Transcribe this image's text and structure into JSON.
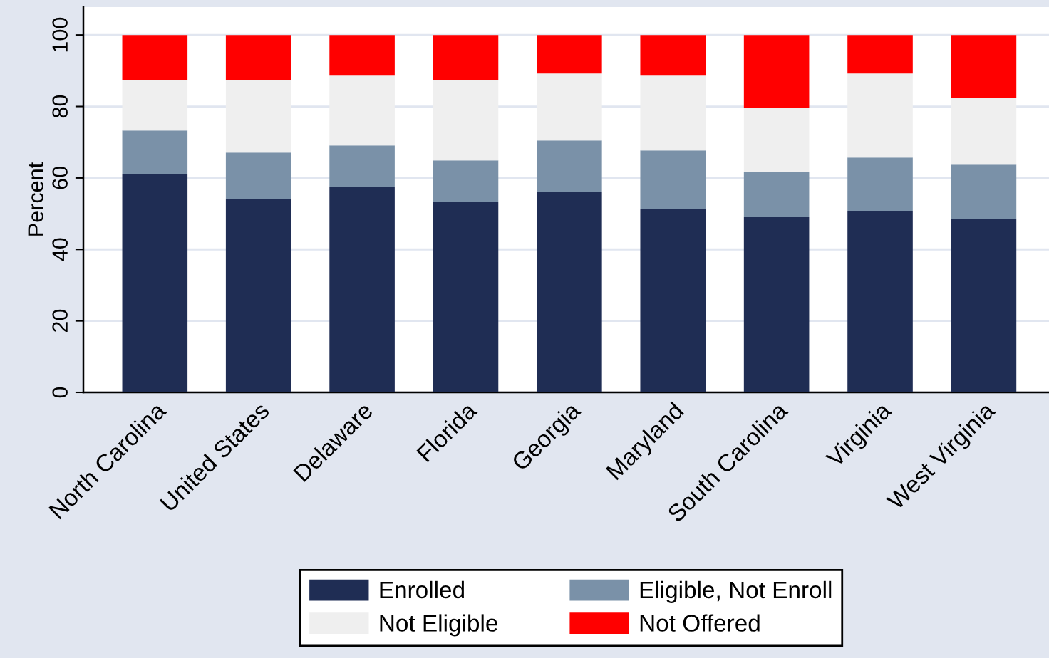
{
  "chart_data": {
    "type": "bar",
    "stacked": true,
    "ylabel": "Percent",
    "categories": [
      "North Carolina",
      "United States",
      "Delaware",
      "Florida",
      "Georgia",
      "Maryland",
      "South Carolina",
      "Virginia",
      "West Virginia"
    ],
    "series": [
      {
        "name": "Enrolled",
        "color": "#1f2d54",
        "values": [
          61.0,
          54.0,
          57.4,
          53.2,
          56.0,
          51.2,
          49.0,
          50.6,
          48.4
        ]
      },
      {
        "name": "Eligible, Not Enroll",
        "color": "#7a91a8",
        "values": [
          12.3,
          13.1,
          11.7,
          11.7,
          14.5,
          16.5,
          12.6,
          15.1,
          15.3
        ]
      },
      {
        "name": "Not Eligible",
        "color": "#efefef",
        "values": [
          14.0,
          20.2,
          19.5,
          22.4,
          18.7,
          20.9,
          18.1,
          23.5,
          18.8
        ]
      },
      {
        "name": "Not Offered",
        "color": "#ff0000",
        "values": [
          12.7,
          12.7,
          11.4,
          12.7,
          10.8,
          11.4,
          20.3,
          10.8,
          17.5
        ]
      }
    ],
    "ylim": [
      0,
      107.8
    ],
    "yticks": [
      0,
      20,
      40,
      60,
      80,
      100
    ],
    "grid": "y",
    "legend": "bottom"
  }
}
